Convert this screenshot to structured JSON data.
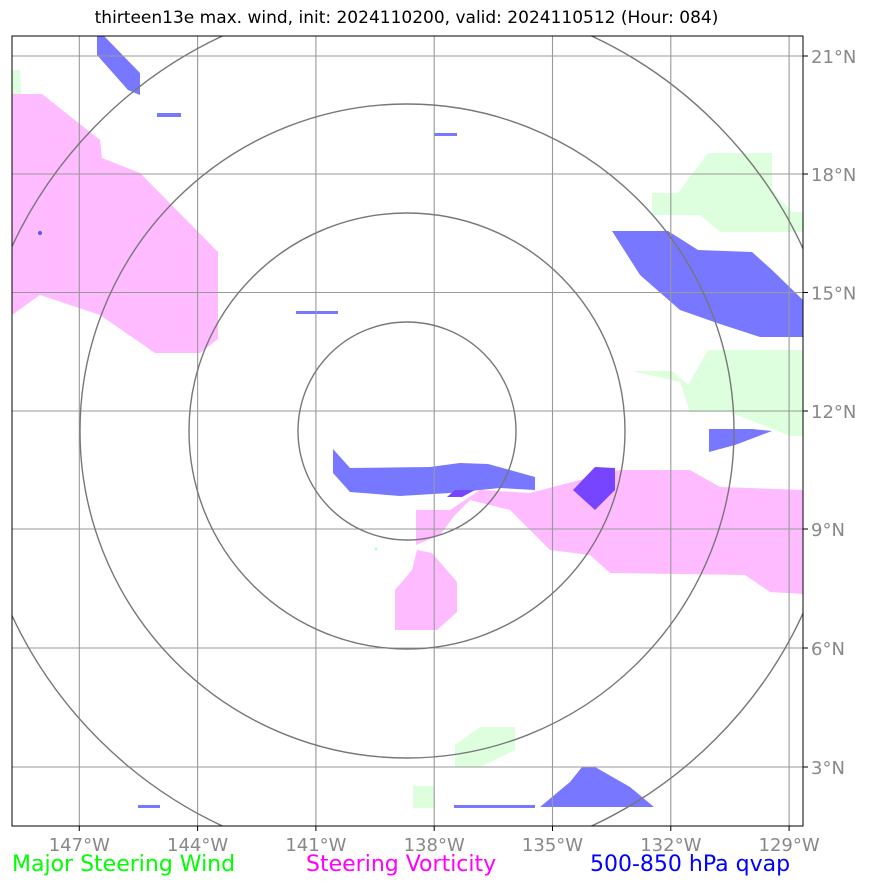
{
  "title": "thirteen13e max. wind, init: 2024110200, valid: 2024110512 (Hour: 084)",
  "lon_labels": [
    "147°W",
    "144°W",
    "141°W",
    "138°W",
    "135°W",
    "132°W",
    "129°W"
  ],
  "lat_labels": [
    "21°N",
    "18°N",
    "15°N",
    "12°N",
    "9°N",
    "6°N",
    "3°N"
  ],
  "legend": {
    "steering_wind": "Major Steering Wind",
    "steering_vorticity": "Steering Vorticity",
    "qvap": "500-850 hPa qvap"
  },
  "colors": {
    "steering_wind": "#00ff00",
    "steering_vorticity": "#ff00ff",
    "qvap": "#0000ff",
    "wind_fill": "#ddffdd",
    "vorticity_fill": "#ffbbff",
    "qvap_fill": "#7777ff",
    "grid": "#888888",
    "range_rings": "#777777"
  },
  "range_rings": {
    "count": 4
  }
}
